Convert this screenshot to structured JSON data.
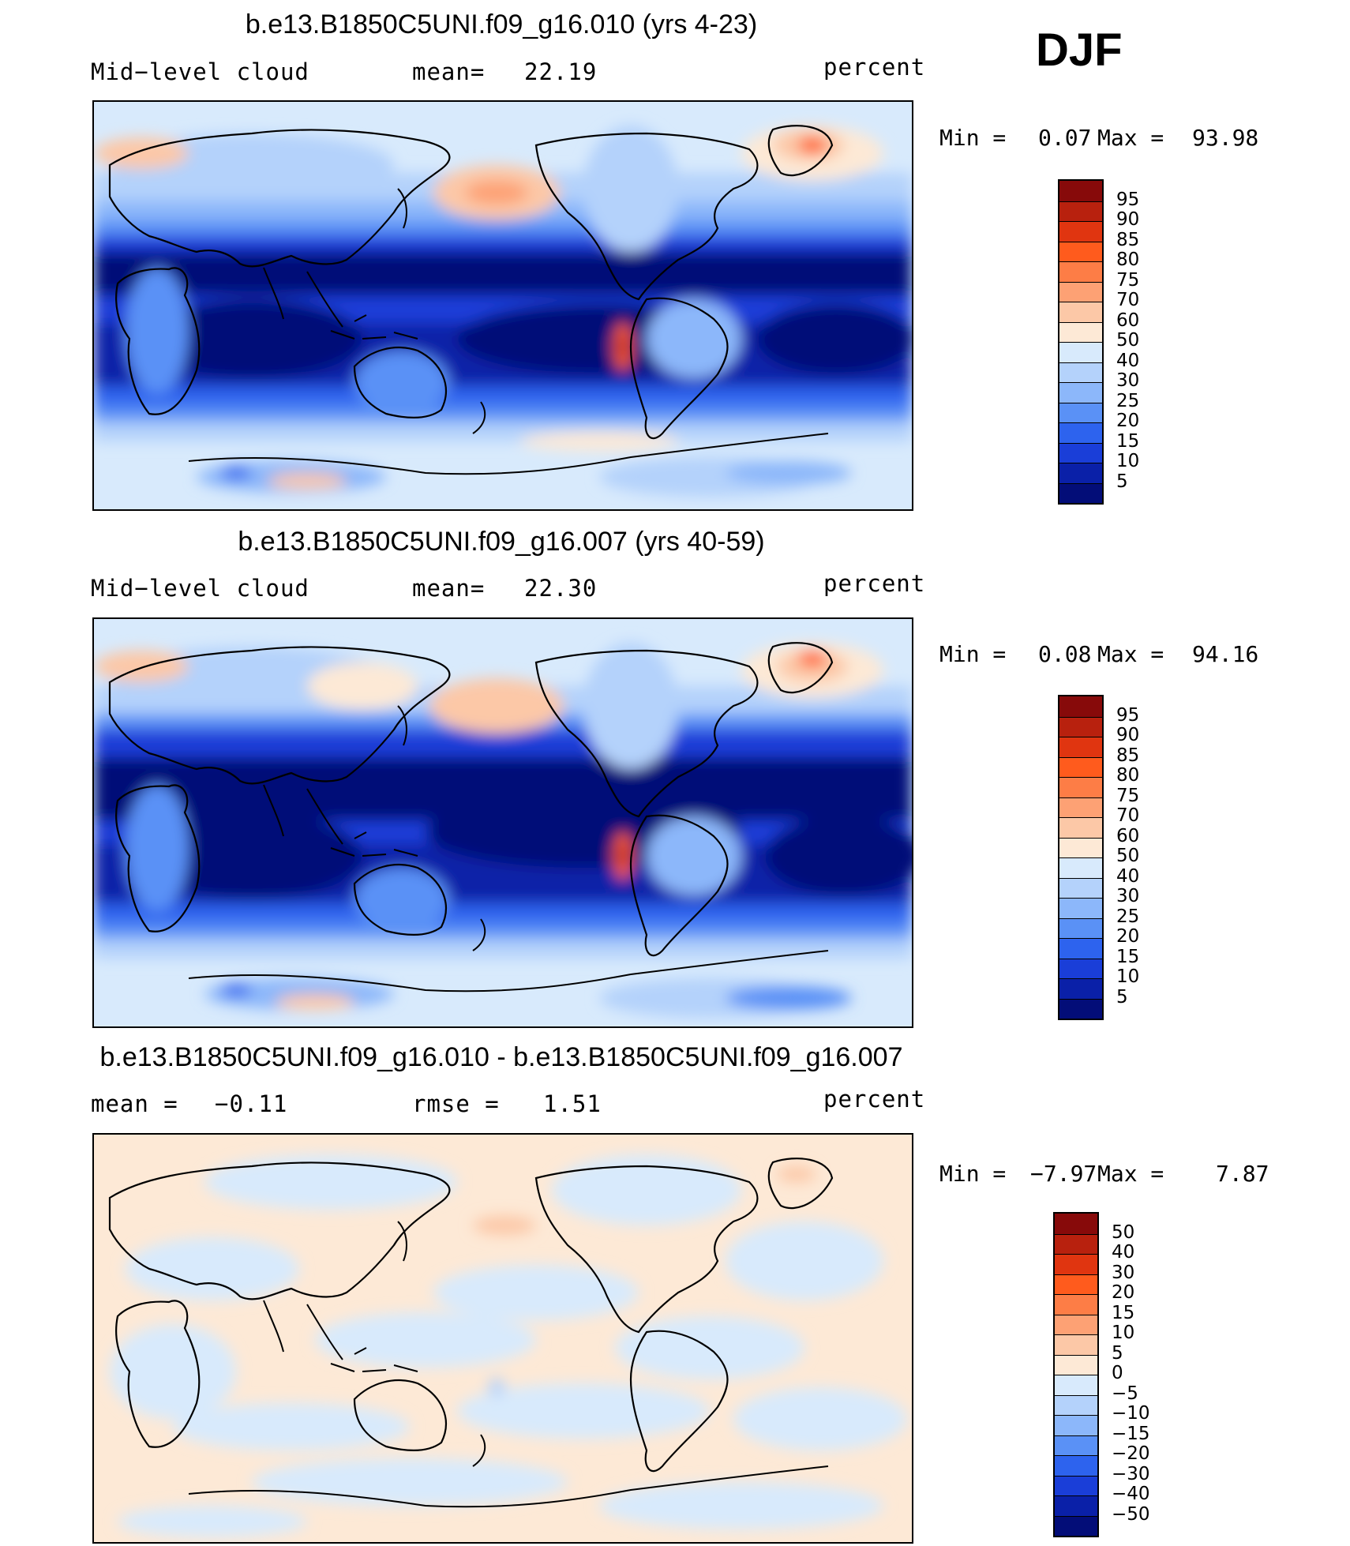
{
  "season": "DJF",
  "units": "percent",
  "panels": [
    {
      "title": "b.e13.B1850C5UNI.f09_g16.010 (yrs 4-23)",
      "variable": "Mid−level cloud",
      "stat1_label": "mean=",
      "stat1_value": "22.19",
      "units": "percent",
      "min_label": "Min =",
      "min_value": "0.07",
      "max_label": "Max =",
      "max_value": "93.98",
      "map_name": "mid-level-cloud-map-model-010",
      "colorbar": {
        "levels": [
          "95",
          "90",
          "85",
          "80",
          "75",
          "70",
          "60",
          "50",
          "40",
          "30",
          "25",
          "20",
          "15",
          "10",
          "5"
        ],
        "colors": [
          "#870a0a",
          "#b8210e",
          "#e03510",
          "#ff5b1d",
          "#fd7d46",
          "#fda174",
          "#fcc8a7",
          "#fde9d6",
          "#d8eafc",
          "#b4d2fb",
          "#8cb7fa",
          "#5a91f6",
          "#2d63ee",
          "#1a3ed8",
          "#0a20a8",
          "#030d78"
        ]
      }
    },
    {
      "title": "b.e13.B1850C5UNI.f09_g16.007 (yrs 40-59)",
      "variable": "Mid−level cloud",
      "stat1_label": "mean=",
      "stat1_value": "22.30",
      "units": "percent",
      "min_label": "Min =",
      "min_value": "0.08",
      "max_label": "Max =",
      "max_value": "94.16",
      "map_name": "mid-level-cloud-map-model-007",
      "colorbar": {
        "levels": [
          "95",
          "90",
          "85",
          "80",
          "75",
          "70",
          "60",
          "50",
          "40",
          "30",
          "25",
          "20",
          "15",
          "10",
          "5"
        ],
        "colors": [
          "#870a0a",
          "#b8210e",
          "#e03510",
          "#ff5b1d",
          "#fd7d46",
          "#fda174",
          "#fcc8a7",
          "#fde9d6",
          "#d8eafc",
          "#b4d2fb",
          "#8cb7fa",
          "#5a91f6",
          "#2d63ee",
          "#1a3ed8",
          "#0a20a8",
          "#030d78"
        ]
      }
    },
    {
      "title": "b.e13.B1850C5UNI.f09_g16.010 - b.e13.B1850C5UNI.f09_g16.007",
      "variable_label": "mean =",
      "variable_value": "−0.11",
      "stat1_label": "rmse =",
      "stat1_value": "1.51",
      "units": "percent",
      "min_label": "Min =",
      "min_value": "−7.97",
      "max_label": "Max =",
      "max_value": "7.87",
      "map_name": "mid-level-cloud-difference-map",
      "colorbar": {
        "levels": [
          "50",
          "40",
          "30",
          "20",
          "15",
          "10",
          "5",
          "0",
          "−5",
          "−10",
          "−15",
          "−20",
          "−30",
          "−40",
          "−50"
        ],
        "colors": [
          "#870a0a",
          "#b8210e",
          "#e03510",
          "#ff5b1d",
          "#fd7d46",
          "#fda174",
          "#fcc8a7",
          "#fde9d6",
          "#d8eafc",
          "#b4d2fb",
          "#8cb7fa",
          "#5a91f6",
          "#2d63ee",
          "#1a3ed8",
          "#0a20a8",
          "#030d78"
        ]
      }
    }
  ]
}
